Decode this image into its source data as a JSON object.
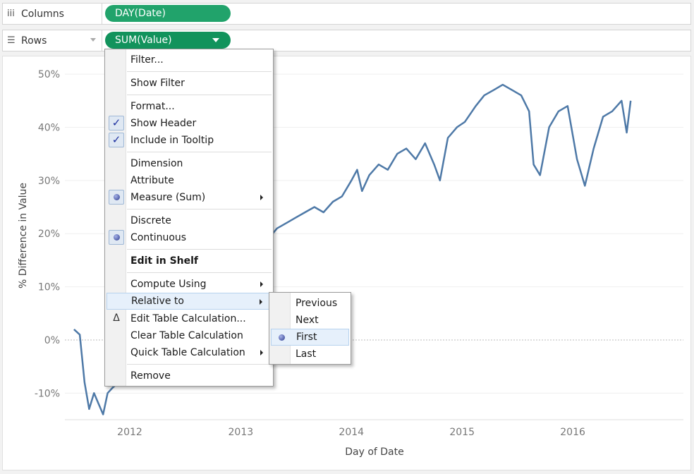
{
  "shelves": {
    "columns": {
      "label": "Columns",
      "icon": "columns-icon",
      "pill": "DAY(Date)"
    },
    "rows": {
      "label": "Rows",
      "icon": "rows-icon",
      "pill": "SUM(Value)"
    }
  },
  "chart_data": {
    "type": "line",
    "xlabel": "Day of Date",
    "ylabel": "% Difference in Value",
    "x_ticks": [
      "2012",
      "2013",
      "2014",
      "2015",
      "2016"
    ],
    "y_ticks": [
      "50%",
      "40%",
      "30%",
      "20%",
      "10%",
      "0%",
      "-10%"
    ],
    "ylim": [
      -0.15,
      0.52
    ],
    "xlim": [
      "2011-06-01",
      "2016-12-31"
    ],
    "grid": true,
    "series_color": "#4e79a7",
    "series": [
      {
        "x": [
          "2011-07-01",
          "2011-07-20",
          "2011-08-05",
          "2011-08-20",
          "2011-09-05",
          "2011-09-20",
          "2011-10-05",
          "2011-10-20",
          "2011-11-05",
          "2011-11-25",
          "2011-12-15",
          "2012-01-10",
          "2012-02-01",
          "2012-03-01",
          "2012-04-01",
          "2012-05-01",
          "2012-06-01",
          "2012-07-01",
          "2012-08-01",
          "2012-09-01",
          "2012-10-01",
          "2012-11-01",
          "2012-12-01",
          "2013-01-01",
          "2013-02-01",
          "2013-03-01",
          "2013-04-01",
          "2013-05-01",
          "2013-06-01",
          "2013-07-01",
          "2013-08-01",
          "2013-09-01",
          "2013-10-01",
          "2013-11-01",
          "2013-12-01",
          "2014-01-01",
          "2014-01-20",
          "2014-02-05",
          "2014-03-01",
          "2014-04-01",
          "2014-05-01",
          "2014-06-01",
          "2014-07-01",
          "2014-08-01",
          "2014-09-01",
          "2014-10-01",
          "2014-10-20",
          "2014-11-15",
          "2014-12-15",
          "2015-01-10",
          "2015-02-15",
          "2015-03-15",
          "2015-04-15",
          "2015-05-15",
          "2015-06-15",
          "2015-07-15",
          "2015-08-10",
          "2015-08-25",
          "2015-09-15",
          "2015-10-15",
          "2015-11-15",
          "2015-12-15",
          "2016-01-15",
          "2016-02-10",
          "2016-03-10",
          "2016-04-10",
          "2016-05-10",
          "2016-06-10",
          "2016-06-27",
          "2016-07-10"
        ],
        "y": [
          0.02,
          0.01,
          -0.08,
          -0.13,
          -0.1,
          -0.12,
          -0.14,
          -0.1,
          -0.09,
          -0.08,
          -0.06,
          -0.04,
          -0.02,
          0.01,
          0.02,
          0.03,
          0.04,
          0.06,
          0.08,
          0.1,
          0.11,
          0.12,
          0.13,
          0.15,
          0.17,
          0.18,
          0.19,
          0.21,
          0.22,
          0.23,
          0.24,
          0.25,
          0.24,
          0.26,
          0.27,
          0.3,
          0.32,
          0.28,
          0.31,
          0.33,
          0.32,
          0.35,
          0.36,
          0.34,
          0.37,
          0.33,
          0.3,
          0.38,
          0.4,
          0.41,
          0.44,
          0.46,
          0.47,
          0.48,
          0.47,
          0.46,
          0.43,
          0.33,
          0.31,
          0.4,
          0.43,
          0.44,
          0.34,
          0.29,
          0.36,
          0.42,
          0.43,
          0.45,
          0.39,
          0.45
        ]
      }
    ]
  },
  "context_menu": {
    "items": {
      "filter": "Filter...",
      "show_filter": "Show Filter",
      "format": "Format...",
      "show_header": "Show Header",
      "include_tooltip": "Include in Tooltip",
      "dimension": "Dimension",
      "attribute": "Attribute",
      "measure": "Measure (Sum)",
      "discrete": "Discrete",
      "continuous": "Continuous",
      "edit_in_shelf": "Edit in Shelf",
      "compute_using": "Compute Using",
      "relative_to": "Relative to",
      "edit_table_calc": "Edit Table Calculation...",
      "clear_table_calc": "Clear Table Calculation",
      "quick_table_calc": "Quick Table Calculation",
      "remove": "Remove"
    },
    "check_glyph": "✓",
    "delta_glyph": "Δ"
  },
  "submenu": {
    "items": {
      "previous": "Previous",
      "next": "Next",
      "first": "First",
      "last": "Last"
    }
  }
}
